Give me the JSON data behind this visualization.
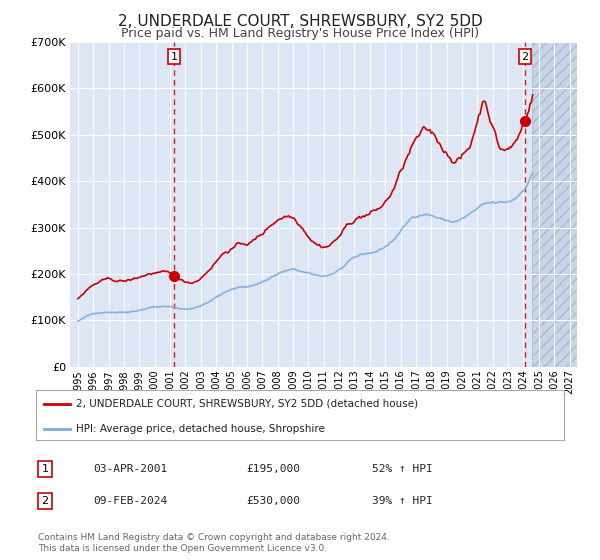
{
  "title": "2, UNDERDALE COURT, SHREWSBURY, SY2 5DD",
  "subtitle": "Price paid vs. HM Land Registry's House Price Index (HPI)",
  "title_fontsize": 11,
  "subtitle_fontsize": 9,
  "bg_color": "#dce6f5",
  "grid_color": "#ffffff",
  "red_line_color": "#cc0000",
  "blue_line_color": "#7aaddd",
  "marker_color": "#cc0000",
  "dashed_line_color": "#cc0000",
  "ylim": [
    0,
    700000
  ],
  "yticks": [
    0,
    100000,
    200000,
    300000,
    400000,
    500000,
    600000,
    700000
  ],
  "sale1_date_num": 2001.25,
  "sale1_price": 195000,
  "sale2_date_num": 2024.1,
  "sale2_price": 530000,
  "legend_line1": "2, UNDERDALE COURT, SHREWSBURY, SY2 5DD (detached house)",
  "legend_line2": "HPI: Average price, detached house, Shropshire",
  "copyright_text": "Contains HM Land Registry data © Crown copyright and database right 2024.\nThis data is licensed under the Open Government Licence v3.0.",
  "xmin": 1994.5,
  "xmax": 2027.5,
  "future_start": 2024.58
}
